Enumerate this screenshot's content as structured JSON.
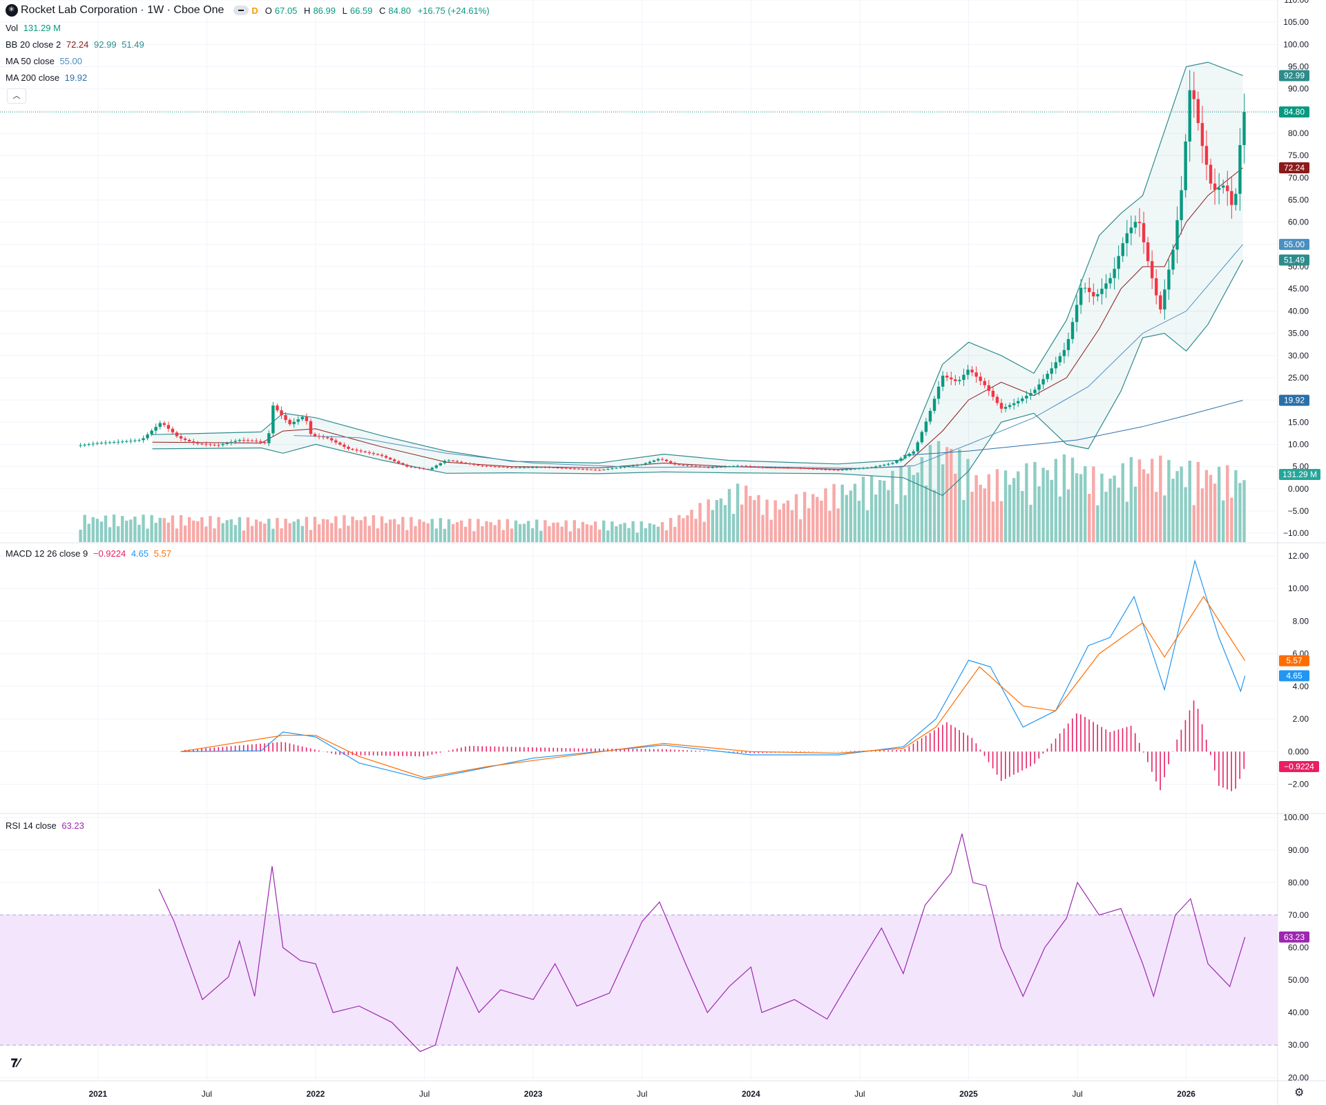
{
  "header": {
    "title": "Rocket Lab Corporation · 1W · Cboe One",
    "interval_badge": "D",
    "ohlc": [
      {
        "k": "O",
        "v": "67.05"
      },
      {
        "k": "H",
        "v": "86.99"
      },
      {
        "k": "L",
        "v": "66.59"
      },
      {
        "k": "C",
        "v": "84.80"
      },
      {
        "k": "",
        "v": "+16.75 (+24.61%)"
      }
    ]
  },
  "legends": {
    "vol": {
      "label": "Vol",
      "value": "131.29 M"
    },
    "bb": {
      "label": "BB 20 close 2",
      "basis": "72.24",
      "upper": "92.99",
      "lower": "51.49"
    },
    "ma50": {
      "label": "MA 50 close",
      "value": "55.00"
    },
    "ma200": {
      "label": "MA 200 close",
      "value": "19.92"
    },
    "macd": {
      "label": "MACD 12 26 close 9",
      "hist": "−0.9224",
      "macd": "4.65",
      "signal": "5.57"
    },
    "rsi": {
      "label": "RSI 14 close",
      "value": "63.23"
    }
  },
  "colors": {
    "up": "#089981",
    "down": "#f23645",
    "up_vol": "#8ecdc4",
    "down_vol": "#f7a9a7",
    "bb": "#2e8b8b",
    "bb_basis": "#8b1a1a",
    "ma50": "#4a8fc0",
    "ma200": "#2a6fa8",
    "macd": "#2196f3",
    "signal": "#ff6d00",
    "hist": "#e91e63",
    "rsi": "#9c27b0",
    "rsi_band": "#f3e5fc"
  },
  "badges": {
    "bb_upper": "92.99",
    "close": "84.80",
    "bb_basis": "72.24",
    "ma50": "55.00",
    "bb_lower": "51.49",
    "ma200": "19.92",
    "volume": "131.29 M",
    "signal": "5.57",
    "macd": "4.65",
    "hist": "−0.9224",
    "rsi": "63.23"
  },
  "chart_data": {
    "type": "line",
    "x_axis": {
      "ticks": [
        "2021",
        "Jul",
        "2022",
        "Jul",
        "2023",
        "Jul",
        "2024",
        "Jul",
        "2025",
        "Jul",
        "2026"
      ],
      "bold_ticks": [
        "2021",
        "2022",
        "2023",
        "2024",
        "2025",
        "2026"
      ]
    },
    "price_axis": {
      "ticks": [
        "110.00",
        "105.00",
        "100.00",
        "95.00",
        "90.00",
        "85.00",
        "80.00",
        "75.00",
        "70.00",
        "65.00",
        "60.00",
        "55.00",
        "50.00",
        "45.00",
        "40.00",
        "35.00",
        "30.00",
        "25.00",
        "20.00",
        "15.00",
        "10.00",
        "5.00",
        "0.000",
        "−5.00",
        "−10.00"
      ],
      "range": [
        -12,
        110
      ]
    },
    "macd_axis": {
      "ticks": [
        "12.00",
        "10.00",
        "8.00",
        "6.00",
        "4.00",
        "2.00",
        "0.000",
        "−2.00"
      ],
      "range": [
        -3.8,
        12.8
      ]
    },
    "rsi_axis": {
      "ticks": [
        "100.00",
        "90.00",
        "80.00",
        "70.00",
        "60.00",
        "50.00",
        "40.00",
        "30.00",
        "20.00"
      ],
      "range": [
        19,
        101
      ],
      "band": [
        30,
        70
      ]
    },
    "close": [
      [
        2020.92,
        9.8
      ],
      [
        2021.0,
        10.3
      ],
      [
        2021.1,
        10.6
      ],
      [
        2021.2,
        11
      ],
      [
        2021.29,
        15
      ],
      [
        2021.37,
        11.5
      ],
      [
        2021.45,
        10.2
      ],
      [
        2021.55,
        9.8
      ],
      [
        2021.65,
        11
      ],
      [
        2021.72,
        10.8
      ],
      [
        2021.78,
        10.1
      ],
      [
        2021.8,
        19
      ],
      [
        2021.88,
        14.5
      ],
      [
        2021.95,
        16.5
      ],
      [
        2021.98,
        12
      ],
      [
        2022.05,
        11.5
      ],
      [
        2022.15,
        9
      ],
      [
        2022.3,
        7.5
      ],
      [
        2022.42,
        5
      ],
      [
        2022.52,
        4.3
      ],
      [
        2022.6,
        6.5
      ],
      [
        2022.75,
        5.2
      ],
      [
        2022.9,
        4.8
      ],
      [
        2023.05,
        4.9
      ],
      [
        2023.3,
        4.2
      ],
      [
        2023.5,
        5.5
      ],
      [
        2023.58,
        6.8
      ],
      [
        2023.65,
        5.5
      ],
      [
        2023.8,
        4.8
      ],
      [
        2023.95,
        5.2
      ],
      [
        2024.05,
        4.8
      ],
      [
        2024.2,
        4.7
      ],
      [
        2024.4,
        4.2
      ],
      [
        2024.55,
        4.8
      ],
      [
        2024.65,
        5.8
      ],
      [
        2024.75,
        8.5
      ],
      [
        2024.82,
        17
      ],
      [
        2024.88,
        25.5
      ],
      [
        2024.95,
        24
      ],
      [
        2025.0,
        27
      ],
      [
        2025.08,
        23
      ],
      [
        2025.15,
        18
      ],
      [
        2025.22,
        19.5
      ],
      [
        2025.3,
        22
      ],
      [
        2025.38,
        27
      ],
      [
        2025.45,
        32
      ],
      [
        2025.52,
        46
      ],
      [
        2025.58,
        43
      ],
      [
        2025.66,
        48
      ],
      [
        2025.72,
        57
      ],
      [
        2025.78,
        61
      ],
      [
        2025.82,
        52
      ],
      [
        2025.88,
        40
      ],
      [
        2025.94,
        54
      ],
      [
        2025.98,
        68
      ],
      [
        2026.02,
        92
      ],
      [
        2026.07,
        78
      ],
      [
        2026.12,
        67
      ],
      [
        2026.18,
        68.5
      ],
      [
        2026.22,
        62
      ],
      [
        2026.26,
        84.8
      ]
    ],
    "bb_upper": [
      [
        2021.25,
        12.2
      ],
      [
        2021.75,
        12.8
      ],
      [
        2021.85,
        17
      ],
      [
        2022.0,
        16
      ],
      [
        2022.3,
        12
      ],
      [
        2022.6,
        8.5
      ],
      [
        2022.9,
        6.2
      ],
      [
        2023.3,
        5.8
      ],
      [
        2023.6,
        7.8
      ],
      [
        2023.9,
        6.4
      ],
      [
        2024.4,
        5.6
      ],
      [
        2024.7,
        6.5
      ],
      [
        2024.88,
        28
      ],
      [
        2025.0,
        33
      ],
      [
        2025.15,
        30
      ],
      [
        2025.3,
        26
      ],
      [
        2025.45,
        38
      ],
      [
        2025.6,
        57
      ],
      [
        2025.7,
        62
      ],
      [
        2025.8,
        66
      ],
      [
        2026.0,
        95
      ],
      [
        2026.1,
        96
      ],
      [
        2026.26,
        93
      ]
    ],
    "bb_basis": [
      [
        2021.25,
        10.5
      ],
      [
        2021.75,
        10.3
      ],
      [
        2021.85,
        13
      ],
      [
        2022.0,
        13.5
      ],
      [
        2022.3,
        9.5
      ],
      [
        2022.6,
        6
      ],
      [
        2022.9,
        5
      ],
      [
        2023.3,
        4.7
      ],
      [
        2023.6,
        5.8
      ],
      [
        2023.9,
        5
      ],
      [
        2024.4,
        4.4
      ],
      [
        2024.7,
        5
      ],
      [
        2024.88,
        13
      ],
      [
        2025.0,
        20
      ],
      [
        2025.15,
        24
      ],
      [
        2025.3,
        21
      ],
      [
        2025.45,
        25
      ],
      [
        2025.6,
        36
      ],
      [
        2025.7,
        45
      ],
      [
        2025.8,
        50
      ],
      [
        2025.9,
        50
      ],
      [
        2026.0,
        60
      ],
      [
        2026.1,
        66
      ],
      [
        2026.26,
        72.24
      ]
    ],
    "bb_lower": [
      [
        2021.25,
        9.0
      ],
      [
        2021.75,
        9.2
      ],
      [
        2021.85,
        8
      ],
      [
        2022.0,
        10
      ],
      [
        2022.3,
        6.5
      ],
      [
        2022.6,
        3.5
      ],
      [
        2022.9,
        3.6
      ],
      [
        2023.3,
        3.4
      ],
      [
        2023.6,
        3.8
      ],
      [
        2023.9,
        3.6
      ],
      [
        2024.4,
        3.4
      ],
      [
        2024.7,
        2.5
      ],
      [
        2024.88,
        -1.5
      ],
      [
        2025.0,
        4
      ],
      [
        2025.15,
        15
      ],
      [
        2025.3,
        17
      ],
      [
        2025.45,
        10
      ],
      [
        2025.55,
        9
      ],
      [
        2025.7,
        22
      ],
      [
        2025.8,
        34
      ],
      [
        2025.9,
        35
      ],
      [
        2026.0,
        31
      ],
      [
        2026.1,
        37
      ],
      [
        2026.26,
        51.49
      ]
    ],
    "ma50": [
      [
        2021.9,
        12
      ],
      [
        2022.2,
        11.5
      ],
      [
        2022.6,
        8
      ],
      [
        2023.0,
        5.8
      ],
      [
        2023.5,
        4.8
      ],
      [
        2024.0,
        5
      ],
      [
        2024.5,
        4.6
      ],
      [
        2024.75,
        5.2
      ],
      [
        2025.0,
        10
      ],
      [
        2025.3,
        16
      ],
      [
        2025.55,
        23
      ],
      [
        2025.8,
        35
      ],
      [
        2026.0,
        40
      ],
      [
        2026.26,
        55
      ]
    ],
    "ma200": [
      [
        2024.7,
        7.5
      ],
      [
        2025.0,
        8.5
      ],
      [
        2025.5,
        11
      ],
      [
        2025.8,
        14
      ],
      [
        2026.0,
        16.5
      ],
      [
        2026.26,
        19.92
      ]
    ],
    "volume_peaks": [
      [
        2021.3,
        40
      ],
      [
        2021.82,
        35
      ],
      [
        2022.2,
        40
      ],
      [
        2022.55,
        35
      ],
      [
        2023.6,
        30
      ],
      [
        2023.97,
        90
      ],
      [
        2024.08,
        60
      ],
      [
        2024.7,
        110
      ],
      [
        2024.9,
        160
      ],
      [
        2025.05,
        100
      ],
      [
        2025.48,
        130
      ],
      [
        2025.62,
        100
      ],
      [
        2025.78,
        130
      ],
      [
        2026.0,
        120
      ],
      [
        2026.22,
        110
      ]
    ],
    "macd": [
      [
        2021.38,
        0
      ],
      [
        2021.75,
        0.05
      ],
      [
        2021.85,
        1.2
      ],
      [
        2022.0,
        0.9
      ],
      [
        2022.2,
        -0.7
      ],
      [
        2022.5,
        -1.7
      ],
      [
        2022.7,
        -1.2
      ],
      [
        2023.0,
        -0.4
      ],
      [
        2023.6,
        0.4
      ],
      [
        2024.0,
        -0.2
      ],
      [
        2024.4,
        -0.2
      ],
      [
        2024.7,
        0.3
      ],
      [
        2024.85,
        2
      ],
      [
        2025.0,
        5.6
      ],
      [
        2025.1,
        5.2
      ],
      [
        2025.25,
        1.5
      ],
      [
        2025.4,
        2.5
      ],
      [
        2025.55,
        6.5
      ],
      [
        2025.65,
        7
      ],
      [
        2025.76,
        9.5
      ],
      [
        2025.9,
        3.8
      ],
      [
        2026.04,
        11.7
      ],
      [
        2026.15,
        7
      ],
      [
        2026.25,
        3.7
      ],
      [
        2026.27,
        4.65
      ]
    ],
    "signal": [
      [
        2021.38,
        0
      ],
      [
        2021.85,
        1
      ],
      [
        2022.0,
        1.0
      ],
      [
        2022.2,
        -0.3
      ],
      [
        2022.5,
        -1.6
      ],
      [
        2022.8,
        -0.9
      ],
      [
        2023.6,
        0.5
      ],
      [
        2024.0,
        0
      ],
      [
        2024.4,
        -0.1
      ],
      [
        2024.7,
        0.2
      ],
      [
        2024.85,
        1.5
      ],
      [
        2025.05,
        5.2
      ],
      [
        2025.25,
        2.8
      ],
      [
        2025.4,
        2.5
      ],
      [
        2025.6,
        6
      ],
      [
        2025.8,
        7.9
      ],
      [
        2025.9,
        5.8
      ],
      [
        2026.08,
        9.5
      ],
      [
        2026.2,
        7
      ],
      [
        2026.27,
        5.57
      ]
    ],
    "rsi": [
      [
        2021.28,
        78
      ],
      [
        2021.35,
        68
      ],
      [
        2021.48,
        44
      ],
      [
        2021.6,
        51
      ],
      [
        2021.65,
        62
      ],
      [
        2021.72,
        45
      ],
      [
        2021.8,
        85
      ],
      [
        2021.85,
        60
      ],
      [
        2021.93,
        56
      ],
      [
        2022.0,
        55
      ],
      [
        2022.08,
        40
      ],
      [
        2022.2,
        42
      ],
      [
        2022.35,
        37
      ],
      [
        2022.48,
        28
      ],
      [
        2022.55,
        30
      ],
      [
        2022.65,
        54
      ],
      [
        2022.75,
        40
      ],
      [
        2022.85,
        47
      ],
      [
        2023.0,
        44
      ],
      [
        2023.1,
        55
      ],
      [
        2023.2,
        42
      ],
      [
        2023.35,
        46
      ],
      [
        2023.5,
        68
      ],
      [
        2023.58,
        74
      ],
      [
        2023.7,
        55
      ],
      [
        2023.8,
        40
      ],
      [
        2023.9,
        48
      ],
      [
        2024.0,
        54
      ],
      [
        2024.05,
        40
      ],
      [
        2024.2,
        44
      ],
      [
        2024.35,
        38
      ],
      [
        2024.5,
        55
      ],
      [
        2024.6,
        66
      ],
      [
        2024.7,
        52
      ],
      [
        2024.8,
        73
      ],
      [
        2024.92,
        83
      ],
      [
        2024.97,
        95
      ],
      [
        2025.02,
        80
      ],
      [
        2025.08,
        79
      ],
      [
        2025.15,
        60
      ],
      [
        2025.25,
        45
      ],
      [
        2025.35,
        60
      ],
      [
        2025.45,
        69
      ],
      [
        2025.5,
        80
      ],
      [
        2025.6,
        70
      ],
      [
        2025.7,
        72
      ],
      [
        2025.8,
        55
      ],
      [
        2025.85,
        45
      ],
      [
        2025.95,
        70
      ],
      [
        2026.02,
        75
      ],
      [
        2026.1,
        55
      ],
      [
        2026.2,
        48
      ],
      [
        2026.27,
        63.23
      ]
    ],
    "macd_hist": [
      [
        2021.4,
        0.1
      ],
      [
        2021.85,
        0.6
      ],
      [
        2022.1,
        -0.2
      ],
      [
        2022.5,
        -0.3
      ],
      [
        2022.7,
        0.35
      ],
      [
        2023.2,
        0.2
      ],
      [
        2023.6,
        0.15
      ],
      [
        2024.0,
        -0.1
      ],
      [
        2024.7,
        0.1
      ],
      [
        2024.9,
        1.8
      ],
      [
        2025.02,
        0.8
      ],
      [
        2025.15,
        -1.8
      ],
      [
        2025.3,
        -0.8
      ],
      [
        2025.5,
        2.4
      ],
      [
        2025.65,
        1.2
      ],
      [
        2025.75,
        1.6
      ],
      [
        2025.88,
        -2.4
      ],
      [
        2025.95,
        0.5
      ],
      [
        2026.04,
        3.3
      ],
      [
        2026.15,
        -2.1
      ],
      [
        2026.22,
        -2.5
      ],
      [
        2026.27,
        -0.92
      ]
    ]
  }
}
